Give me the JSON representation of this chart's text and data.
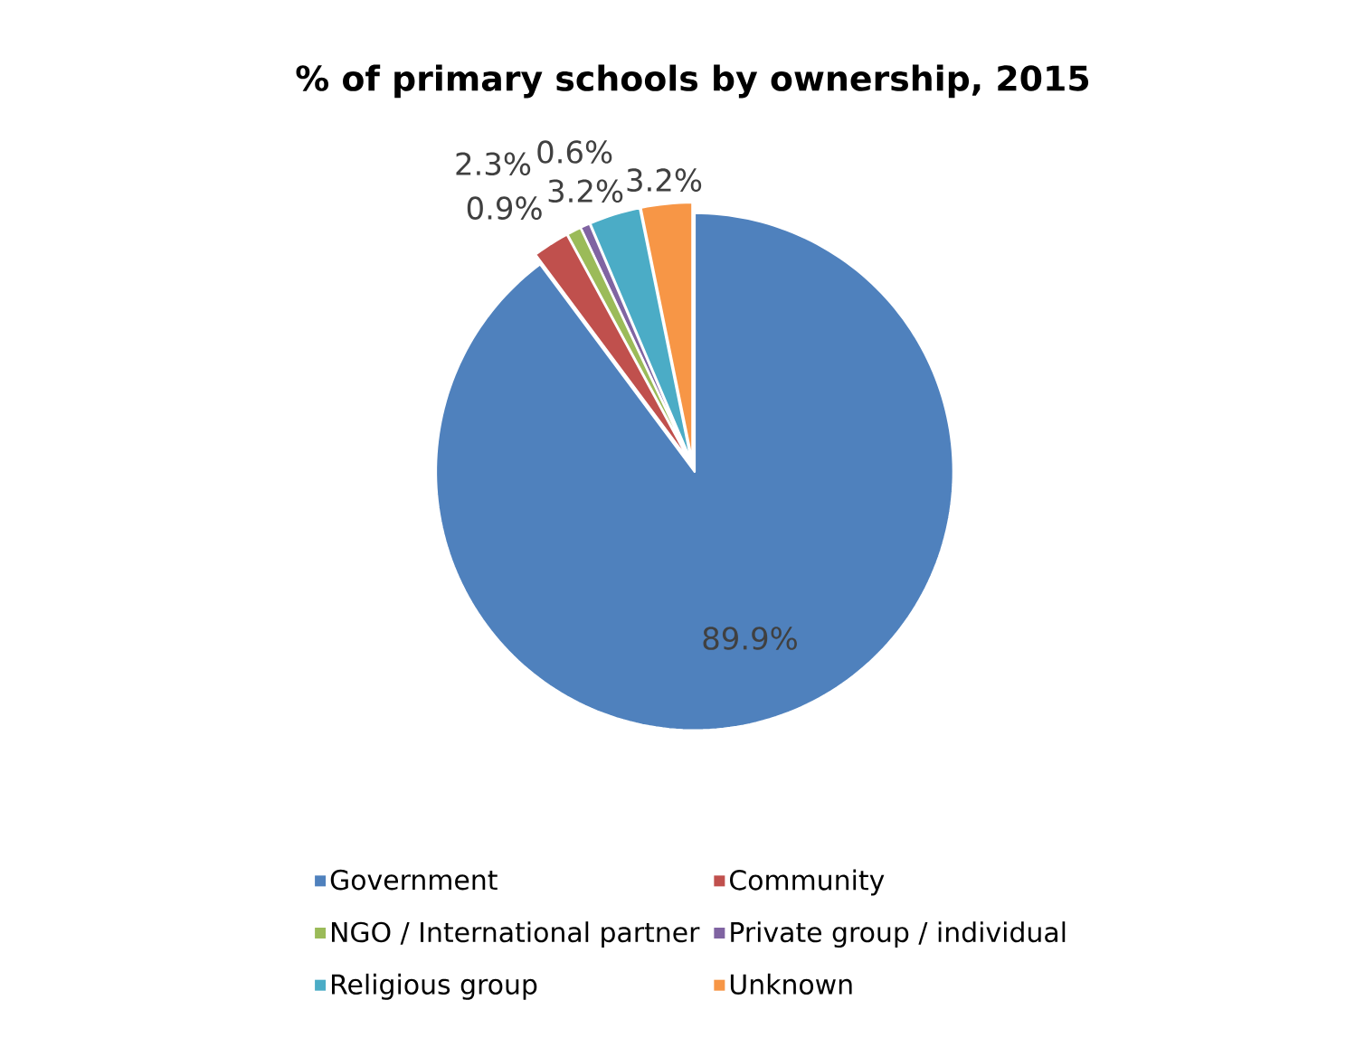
{
  "chart_data": {
    "type": "pie",
    "title": "% of primary schools by ownership, 2015",
    "categories": [
      "Government",
      "Community",
      "NGO / International partner",
      "Private group / individual",
      "Religious group",
      "Unknown"
    ],
    "values": [
      89.9,
      2.3,
      0.9,
      0.6,
      3.2,
      3.2
    ],
    "value_labels": [
      "89.9%",
      "2.3%",
      "0.9%",
      "0.6%",
      "3.2%",
      "3.2%"
    ],
    "colors": [
      "#4f81bd",
      "#c0504d",
      "#9bbb59",
      "#8064a2",
      "#4bacc6",
      "#f79646"
    ],
    "legend": "bottom"
  }
}
